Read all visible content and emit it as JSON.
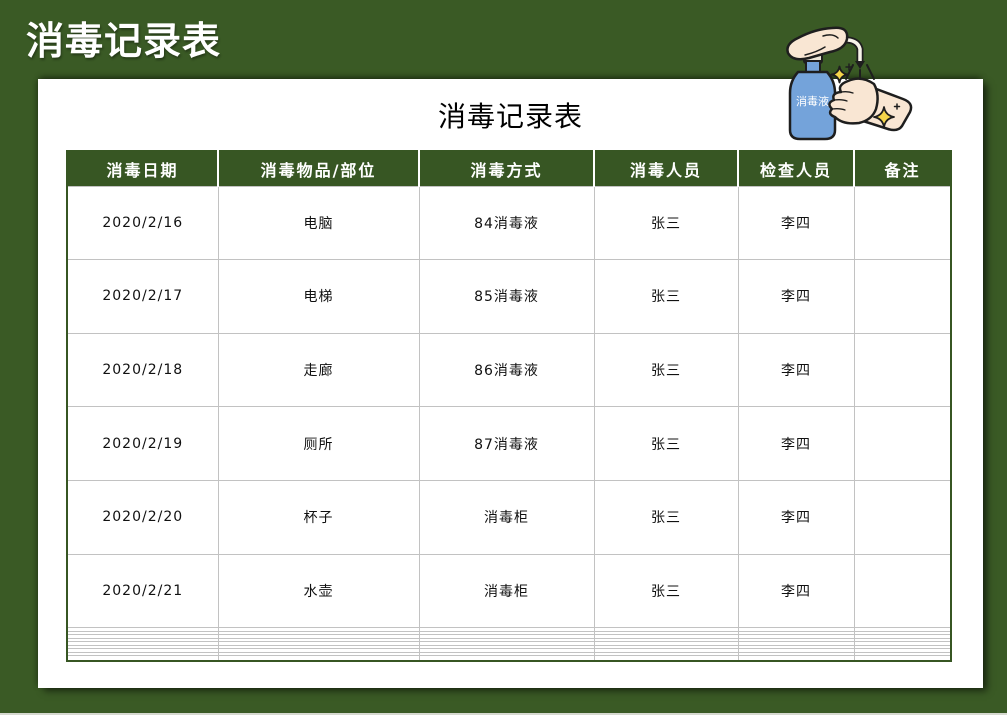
{
  "banner": {
    "title": "消毒记录表"
  },
  "card": {
    "title": "消毒记录表"
  },
  "illustration": {
    "bottle_label": "消毒液"
  },
  "table": {
    "headers": [
      "消毒日期",
      "消毒物品/部位",
      "消毒方式",
      "消毒人员",
      "检查人员",
      "备注"
    ],
    "rows": [
      [
        "2020/2/16",
        "电脑",
        "84消毒液",
        "张三",
        "李四",
        ""
      ],
      [
        "2020/2/17",
        "电梯",
        "85消毒液",
        "张三",
        "李四",
        ""
      ],
      [
        "2020/2/18",
        "走廊",
        "86消毒液",
        "张三",
        "李四",
        ""
      ],
      [
        "2020/2/19",
        "厕所",
        "87消毒液",
        "张三",
        "李四",
        ""
      ],
      [
        "2020/2/20",
        "杯子",
        "消毒柜",
        "张三",
        "李四",
        ""
      ],
      [
        "2020/2/21",
        "水壶",
        "消毒柜",
        "张三",
        "李四",
        ""
      ]
    ],
    "empty_row_count": 9
  },
  "colors": {
    "frame_green": "#3a5a25",
    "header_green": "#375623",
    "grid_gray": "#c2c2c2",
    "bottle_blue": "#74a3da",
    "skin_tone": "#f9e6d3",
    "sparkle_yellow": "#f5d54a",
    "banner_text": "#ffffff",
    "body_text": "#111111"
  }
}
